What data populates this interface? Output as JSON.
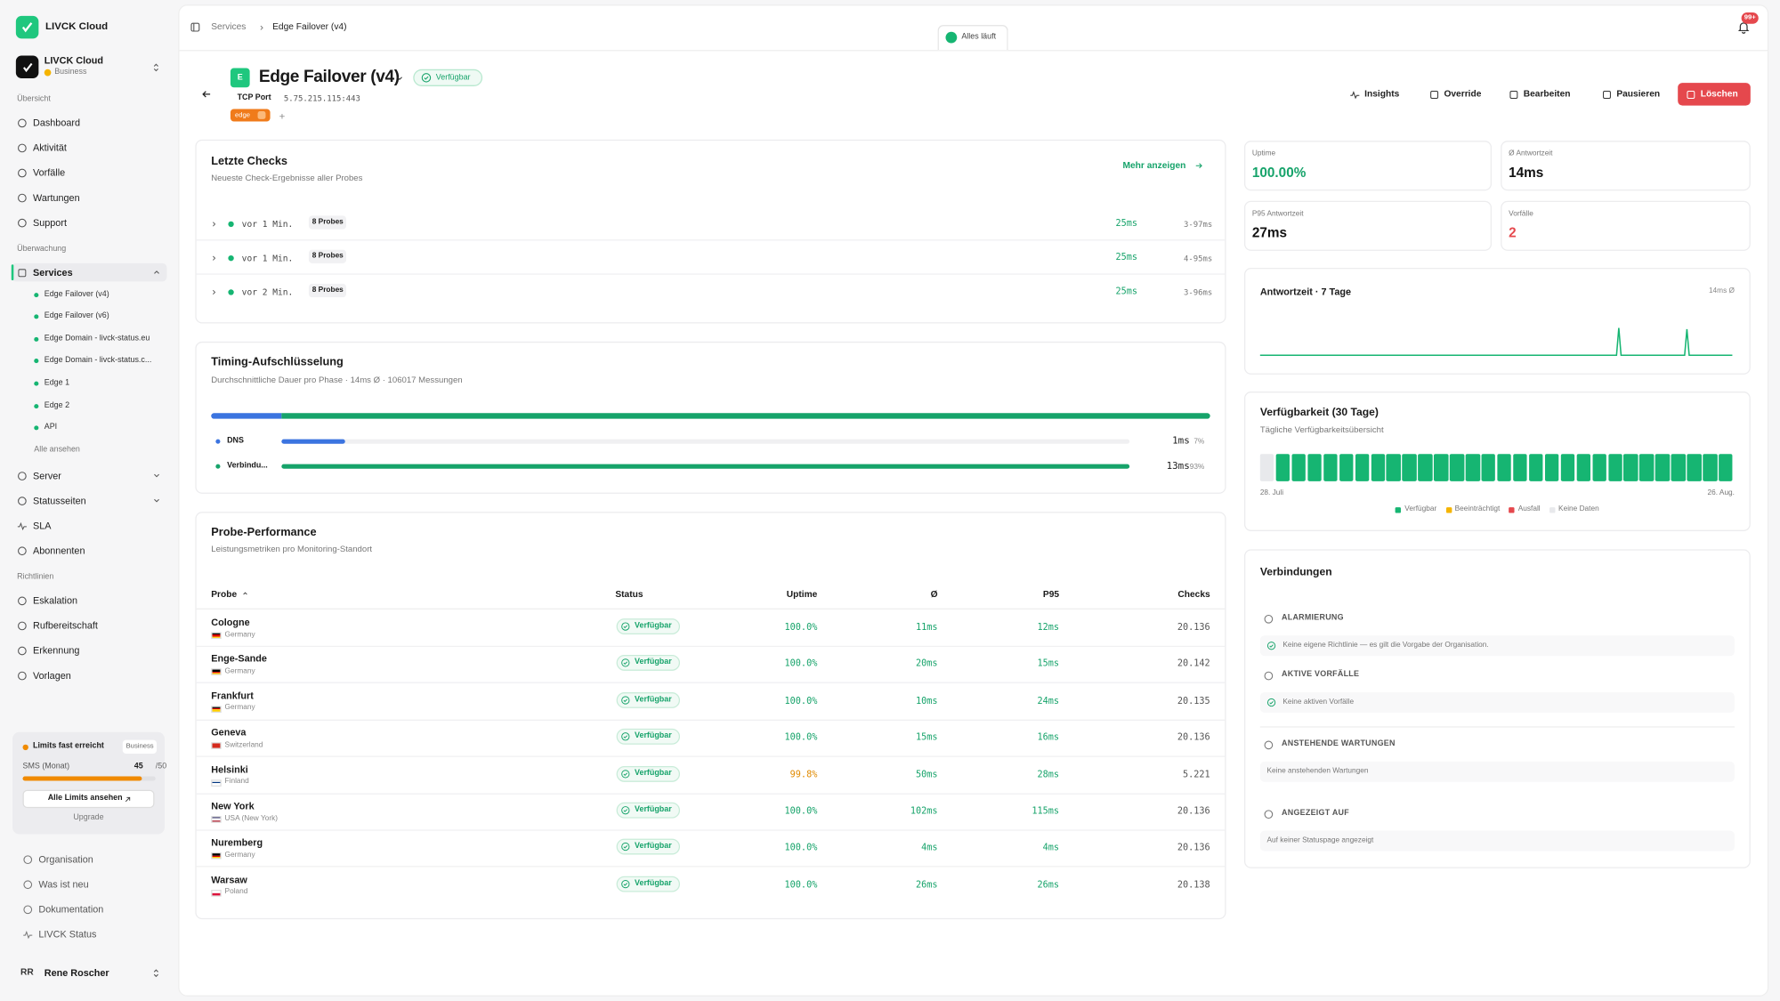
{
  "sidebar": {
    "brand": "LIVCK Cloud",
    "org": {
      "name": "LIVCK Cloud",
      "plan": "Business"
    },
    "overview_title": "Übersicht",
    "overview": [
      "Dashboard",
      "Aktivität",
      "Vorfälle",
      "Wartungen",
      "Support"
    ],
    "monitoring_title": "Überwachung",
    "services": "Services",
    "service_items": [
      "Edge Failover (v4)",
      "Edge Failover (v6)",
      "Edge Domain - livck-status.eu",
      "Edge Domain - livck-status.c...",
      "Edge 1",
      "Edge 2",
      "API"
    ],
    "see_all": "Alle ansehen",
    "monitoring": [
      "Server",
      "Statusseiten",
      "SLA",
      "Abonnenten"
    ],
    "policies_title": "Richtlinien",
    "policies": [
      "Eskalation",
      "Rufbereitschaft",
      "Erkennung",
      "Vorlagen"
    ],
    "limits": {
      "title": "Limits fast erreicht",
      "plan": "Business",
      "metric": "SMS (Monat)",
      "used": 45,
      "max": {
        "value": 50,
        "label": "/50"
      },
      "button": "Alle Limits ansehen",
      "upgrade": "Upgrade"
    },
    "footer_links": [
      "Organisation",
      "Was ist neu",
      "Dokumentation",
      "LIVCK Status"
    ],
    "user": {
      "initials": "RR",
      "name": "Rene Roscher"
    }
  },
  "header": {
    "breadcrumb": [
      "Services",
      "Edge Failover (v4)"
    ],
    "status": "Alles läuft",
    "notifications": "99+"
  },
  "service": {
    "icon": "E",
    "name": "Edge Failover (v4)",
    "status": "Verfügbar",
    "type": "TCP Port",
    "address": "5.75.215.115:443",
    "tag": "edge"
  },
  "actions": [
    "Insights",
    "Override",
    "Bearbeiten",
    "Pausieren",
    "Löschen"
  ],
  "checks": {
    "title": "Letzte Checks",
    "subtitle": "Neueste Check-Ergebnisse aller Probes",
    "more": "Mehr anzeigen",
    "rows": [
      {
        "time": "vor 1 Min.",
        "probes": "8 Probes",
        "avg": "25ms",
        "range": "3-97ms"
      },
      {
        "time": "vor 1 Min.",
        "probes": "8 Probes",
        "avg": "25ms",
        "range": "4-95ms"
      },
      {
        "time": "vor 2 Min.",
        "probes": "8 Probes",
        "avg": "25ms",
        "range": "3-96ms"
      }
    ]
  },
  "timing": {
    "title": "Timing-Aufschlüsselung",
    "subtitle": "Durchschnittliche Dauer pro Phase · 14ms Ø · 106017 Messungen",
    "phases": [
      {
        "name": "DNS",
        "ms": "1ms",
        "pct": 7,
        "pct_label": "7%",
        "color": "#3b74e0"
      },
      {
        "name": "Verbindu...",
        "ms": "13ms",
        "pct": 93,
        "pct_label": "93%",
        "color": "#16a36a"
      }
    ]
  },
  "probes": {
    "title": "Probe-Performance",
    "subtitle": "Leistungsmetriken pro Monitoring-Standort",
    "columns": [
      "Probe",
      "Status",
      "Uptime",
      "Ø",
      "P95",
      "Checks"
    ],
    "rows": [
      {
        "name": "Cologne",
        "country": "Germany",
        "flag": [
          "#000000",
          "#dd0000",
          "#ffce00"
        ],
        "status": "Verfügbar",
        "uptime": "100.0%",
        "avg": "11ms",
        "p95": "12ms",
        "checks": "20.136"
      },
      {
        "name": "Enge-Sande",
        "country": "Germany",
        "flag": [
          "#000000",
          "#dd0000",
          "#ffce00"
        ],
        "status": "Verfügbar",
        "uptime": "100.0%",
        "avg": "20ms",
        "p95": "15ms",
        "checks": "20.142"
      },
      {
        "name": "Frankfurt",
        "country": "Germany",
        "flag": [
          "#000000",
          "#dd0000",
          "#ffce00"
        ],
        "status": "Verfügbar",
        "uptime": "100.0%",
        "avg": "10ms",
        "p95": "24ms",
        "checks": "20.135"
      },
      {
        "name": "Geneva",
        "country": "Switzerland",
        "flag": [
          "#d52b1e"
        ],
        "status": "Verfügbar",
        "uptime": "100.0%",
        "avg": "15ms",
        "p95": "16ms",
        "checks": "20.136"
      },
      {
        "name": "Helsinki",
        "country": "Finland",
        "flag": [
          "#ffffff",
          "#003580",
          "#ffffff"
        ],
        "status": "Verfügbar",
        "uptime": "99.8%",
        "avg": "50ms",
        "p95": "28ms",
        "checks": "5.221"
      },
      {
        "name": "New York",
        "country": "USA (New York)",
        "flag": [
          "#3c3b6e",
          "#ffffff",
          "#b22234"
        ],
        "status": "Verfügbar",
        "uptime": "100.0%",
        "avg": "102ms",
        "p95": "115ms",
        "checks": "20.136"
      },
      {
        "name": "Nuremberg",
        "country": "Germany",
        "flag": [
          "#000000",
          "#dd0000",
          "#ffce00"
        ],
        "status": "Verfügbar",
        "uptime": "100.0%",
        "avg": "4ms",
        "p95": "4ms",
        "checks": "20.136"
      },
      {
        "name": "Warsaw",
        "country": "Poland",
        "flag": [
          "#ffffff",
          "#dc143c"
        ],
        "status": "Verfügbar",
        "uptime": "100.0%",
        "avg": "26ms",
        "p95": "26ms",
        "checks": "20.138"
      }
    ]
  },
  "stats": [
    {
      "label": "Uptime",
      "value": "100.00%",
      "color": "#16a36a"
    },
    {
      "label": "Ø Antwortzeit",
      "value": "14ms",
      "color": "#111111"
    },
    {
      "label": "P95 Antwortzeit",
      "value": "27ms",
      "color": "#111111"
    },
    {
      "label": "Vorfälle",
      "value": "2",
      "color": "#e5484d"
    }
  ],
  "response_chart": {
    "title": "Antwortzeit · 7 Tage",
    "note": "14ms Ø"
  },
  "availability": {
    "title": "Verfügbarkeit (30 Tage)",
    "subtitle": "Tägliche Verfügbarkeitsübersicht",
    "start": "28. Juli",
    "end": "26. Aug.",
    "legend": [
      {
        "name": "Verfügbar",
        "color": "#16b572"
      },
      {
        "name": "Beeinträchtigt",
        "color": "#f5b400"
      },
      {
        "name": "Ausfall",
        "color": "#e5484d"
      },
      {
        "name": "Keine Daten",
        "color": "#e8e9ec"
      }
    ],
    "days": [
      3,
      0,
      0,
      0,
      0,
      0,
      0,
      0,
      0,
      0,
      0,
      0,
      0,
      0,
      0,
      0,
      0,
      0,
      0,
      0,
      0,
      0,
      0,
      0,
      0,
      0,
      0,
      0,
      0,
      0
    ]
  },
  "connections": {
    "title": "Verbindungen",
    "sections": [
      {
        "title": "ALARMIERUNG",
        "text": "Keine eigene Richtlinie — es gilt die Vorgabe der Organisation."
      },
      {
        "title": "AKTIVE VORFÄLLE",
        "text": "Keine aktiven Vorfälle"
      },
      {
        "title": "ANSTEHENDE WARTUNGEN",
        "text": "Keine anstehenden Wartungen"
      },
      {
        "title": "ANGEZEIGT AUF",
        "text": "Auf keiner Statuspage angezeigt"
      }
    ]
  }
}
